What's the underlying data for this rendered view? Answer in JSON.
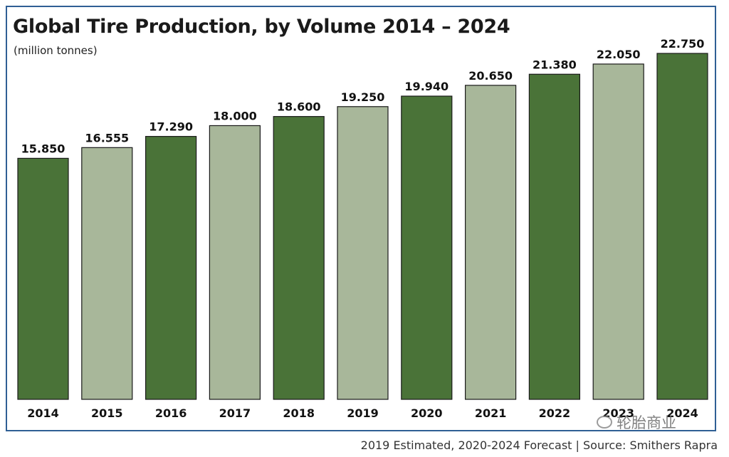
{
  "chart_data": {
    "type": "bar",
    "title": "Global Tire Production, by Volume 2014 – 2024",
    "subtitle": "(million tonnes)",
    "categories": [
      "2014",
      "2015",
      "2016",
      "2017",
      "2018",
      "2019",
      "2020",
      "2021",
      "2022",
      "2023",
      "2024"
    ],
    "values": [
      15.85,
      16.555,
      17.29,
      18.0,
      18.6,
      19.25,
      19.94,
      20.65,
      21.38,
      22.05,
      22.75
    ],
    "data_labels": [
      "15.850",
      "16.555",
      "17.290",
      "18.000",
      "18.600",
      "19.250",
      "19.940",
      "20.650",
      "21.380",
      "22.050",
      "22.750"
    ],
    "bar_colors": [
      "#4a7338",
      "#a8b79a",
      "#4a7338",
      "#a8b79a",
      "#4a7338",
      "#a8b79a",
      "#4a7338",
      "#a8b79a",
      "#4a7338",
      "#a8b79a",
      "#4a7338"
    ],
    "xlabel": "",
    "ylabel": "",
    "ylim": [
      0,
      23.5
    ],
    "grid": false,
    "legend": "none",
    "footnote": "2019 Estimated, 2020-2024 Forecast | Source: Smithers Rapra"
  },
  "watermark": "轮胎商业",
  "colors": {
    "frame": "#2f5f94",
    "dark_bar": "#4a7338",
    "light_bar": "#a8b79a",
    "bar_stroke": "#1a1a1a"
  }
}
